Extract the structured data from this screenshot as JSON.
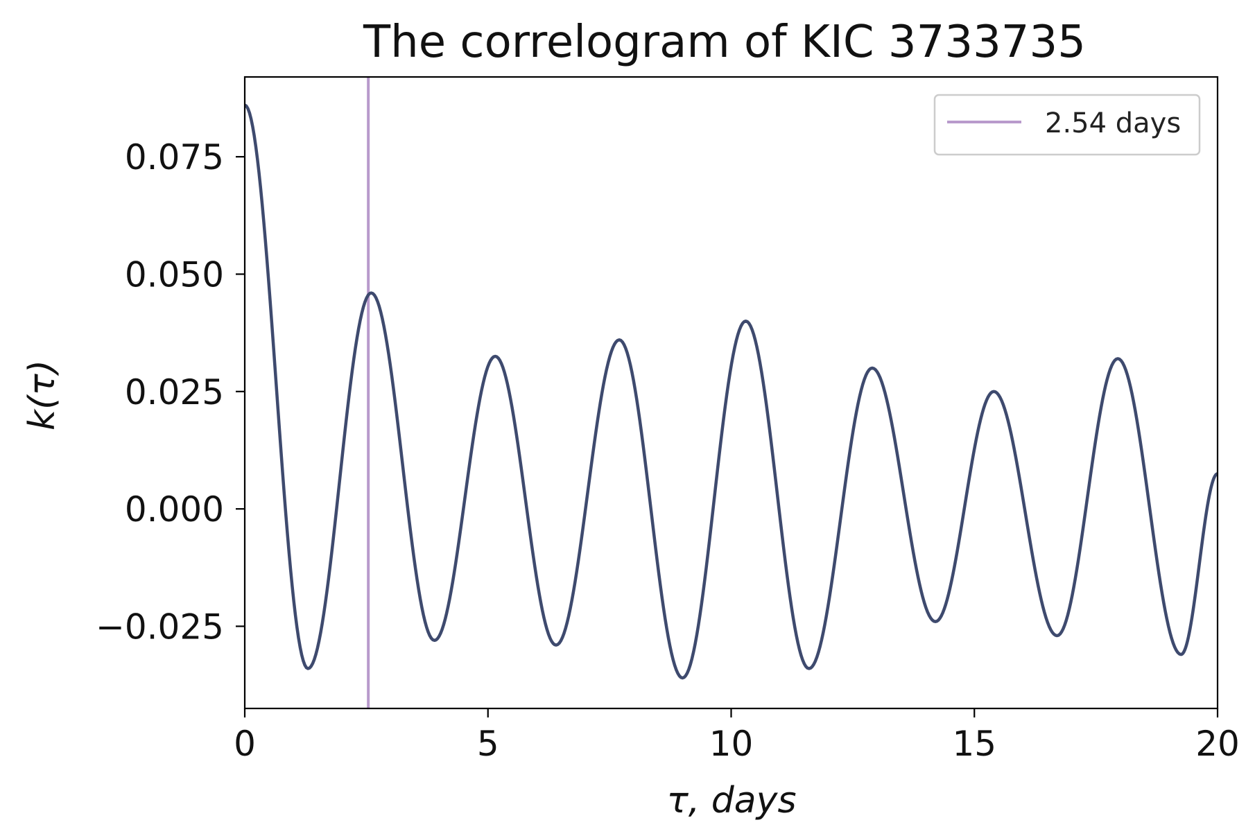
{
  "chart_data": {
    "type": "line",
    "title": "The correlogram of KIC 3733735",
    "xlabel": "τ, days",
    "ylabel": "k(τ)",
    "xlim": [
      0,
      20
    ],
    "ylim": [
      -0.0425,
      0.092
    ],
    "xticks": [
      0,
      5,
      10,
      15,
      20
    ],
    "xtick_labels": [
      "0",
      "5",
      "10",
      "15",
      "20"
    ],
    "yticks": [
      -0.025,
      0.0,
      0.025,
      0.05,
      0.075
    ],
    "ytick_labels": [
      "−0.025",
      "0.000",
      "0.025",
      "0.050",
      "0.075"
    ],
    "grid": false,
    "legend_position": "top-right",
    "series": [
      {
        "color": "#3e4a6e",
        "points": [
          [
            0.0,
            0.086
          ],
          [
            1.3,
            -0.034
          ],
          [
            2.6,
            0.046
          ],
          [
            3.9,
            -0.028
          ],
          [
            5.15,
            0.0325
          ],
          [
            6.4,
            -0.029
          ],
          [
            7.7,
            0.036
          ],
          [
            9.0,
            -0.036
          ],
          [
            10.3,
            0.04
          ],
          [
            11.6,
            -0.034
          ],
          [
            12.9,
            0.03
          ],
          [
            14.2,
            -0.024
          ],
          [
            15.4,
            0.025
          ],
          [
            16.7,
            -0.027
          ],
          [
            17.95,
            0.032
          ],
          [
            19.25,
            -0.031
          ],
          [
            20.0,
            0.0075
          ]
        ]
      }
    ],
    "vlines": [
      {
        "x": 2.54,
        "label": "2.54 days",
        "color": "#b89acc"
      }
    ]
  }
}
